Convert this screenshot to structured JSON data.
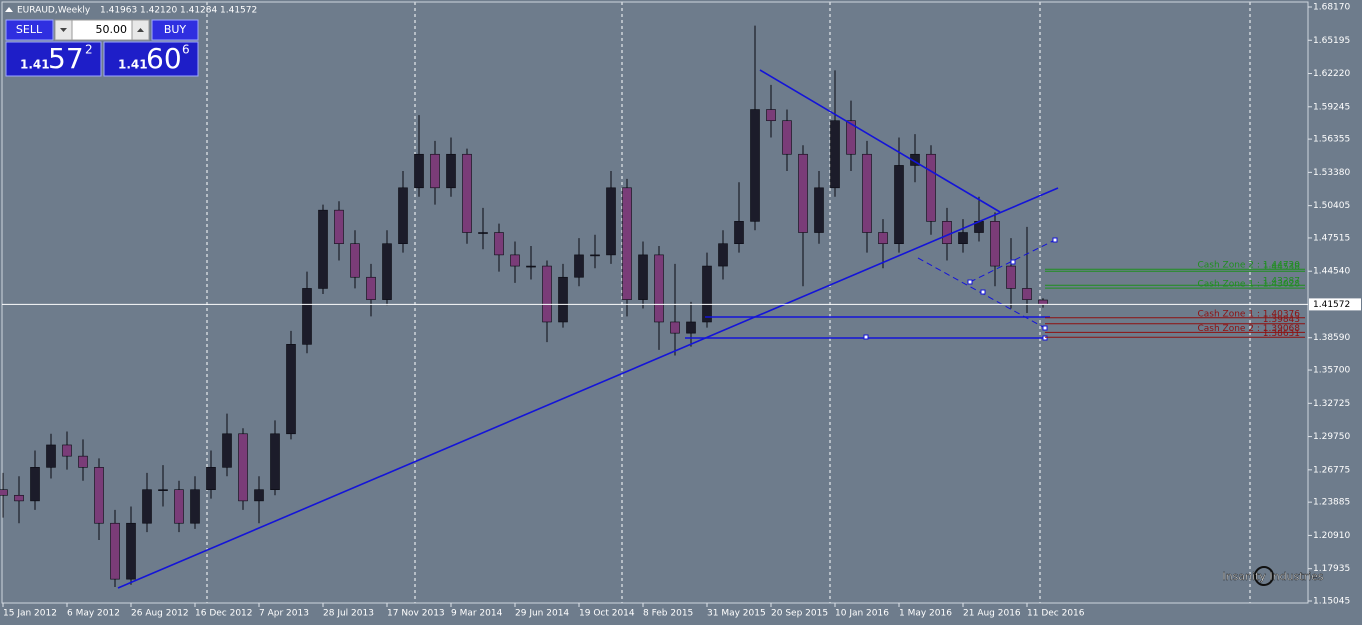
{
  "chart_data": {
    "type": "candlestick",
    "title": "EURAUD,Weekly",
    "quote": [
      1.41963,
      {
        "value": 1.4212,
        "label": "1.42120"
      },
      1.41284,
      1.41572
    ],
    "categories": [
      "15 Jan 2012",
      null,
      null,
      null,
      "6 May 2012",
      null,
      null,
      null,
      "26 Aug 2012",
      null,
      null,
      null,
      "16 Dec 2012",
      null,
      null,
      null,
      "7 Apr 2013",
      null,
      null,
      null,
      "28 Jul 2013",
      null,
      null,
      null,
      "17 Nov 2013",
      null,
      null,
      null,
      "9 Mar 2014",
      null,
      null,
      null,
      "29 Jun 2014",
      null,
      null,
      null,
      "19 Oct 2014",
      null,
      null,
      null,
      "8 Feb 2015",
      null,
      null,
      null,
      "31 May 2015",
      null,
      null,
      null,
      "20 Sep 2015",
      null,
      null,
      null,
      "10 Jan 2016",
      null,
      null,
      null,
      "1 May 2016",
      null,
      null,
      null,
      "21 Aug 2016",
      null,
      null,
      null,
      "11 Dec 2016",
      null
    ],
    "ohlc": [
      [
        1.25,
        1.265,
        1.225,
        1.245
      ],
      [
        1.245,
        1.262,
        1.22,
        1.24
      ],
      [
        1.24,
        1.285,
        1.232,
        1.27
      ],
      [
        1.27,
        1.3,
        1.26,
        1.29
      ],
      [
        1.29,
        1.302,
        1.268,
        1.28
      ],
      [
        1.28,
        1.295,
        1.258,
        1.27
      ],
      [
        1.27,
        1.278,
        1.205,
        1.22
      ],
      [
        1.22,
        1.232,
        1.163,
        1.17
      ],
      [
        1.17,
        1.235,
        1.165,
        1.22
      ],
      [
        1.22,
        1.265,
        1.212,
        1.25
      ],
      [
        1.25,
        1.272,
        1.235,
        1.25
      ],
      [
        1.25,
        1.258,
        1.212,
        1.22
      ],
      [
        1.22,
        1.262,
        1.215,
        1.25
      ],
      [
        1.25,
        1.285,
        1.242,
        1.27
      ],
      [
        1.27,
        1.318,
        1.262,
        1.3
      ],
      [
        1.3,
        1.305,
        1.232,
        1.24
      ],
      [
        1.24,
        1.262,
        1.22,
        1.25
      ],
      [
        1.25,
        1.312,
        1.245,
        1.3
      ],
      [
        1.3,
        1.392,
        1.295,
        1.38
      ],
      [
        1.38,
        1.445,
        1.372,
        1.43
      ],
      [
        1.43,
        1.505,
        1.425,
        1.5
      ],
      [
        1.5,
        1.508,
        1.455,
        1.47
      ],
      [
        1.47,
        1.482,
        1.43,
        1.44
      ],
      [
        1.44,
        1.452,
        1.405,
        1.42
      ],
      [
        1.42,
        1.482,
        1.415,
        1.47
      ],
      [
        1.47,
        1.535,
        1.462,
        1.52
      ],
      [
        1.52,
        1.585,
        1.512,
        1.55
      ],
      [
        1.55,
        1.562,
        1.505,
        1.52
      ],
      [
        1.52,
        1.565,
        1.512,
        1.55
      ],
      [
        1.55,
        1.555,
        1.47,
        1.48
      ],
      [
        1.48,
        1.502,
        1.465,
        1.48
      ],
      [
        1.48,
        1.488,
        1.445,
        1.46
      ],
      [
        1.46,
        1.472,
        1.435,
        1.45
      ],
      [
        1.45,
        1.468,
        1.438,
        1.45
      ],
      [
        1.45,
        1.455,
        1.382,
        1.4
      ],
      [
        1.4,
        1.452,
        1.395,
        1.44
      ],
      [
        1.44,
        1.475,
        1.432,
        1.46
      ],
      [
        1.46,
        1.478,
        1.448,
        1.46
      ],
      [
        1.46,
        1.535,
        1.452,
        1.52
      ],
      [
        1.52,
        1.528,
        1.405,
        1.42
      ],
      [
        1.42,
        1.472,
        1.412,
        1.46
      ],
      [
        1.46,
        1.468,
        1.375,
        1.4
      ],
      [
        1.4,
        1.452,
        1.37,
        1.39
      ],
      [
        1.39,
        1.418,
        1.378,
        1.4
      ],
      [
        1.4,
        1.462,
        1.395,
        1.45
      ],
      [
        1.45,
        1.482,
        1.438,
        1.47
      ],
      [
        1.47,
        1.525,
        1.462,
        1.49
      ],
      [
        1.49,
        1.665,
        1.482,
        1.59
      ],
      [
        1.59,
        1.612,
        1.565,
        1.58
      ],
      [
        1.58,
        1.59,
        1.535,
        1.55
      ],
      [
        1.55,
        1.558,
        1.432,
        1.48
      ],
      [
        1.48,
        1.535,
        1.47,
        1.52
      ],
      [
        1.52,
        1.625,
        1.512,
        1.58
      ],
      [
        1.58,
        1.598,
        1.535,
        1.55
      ],
      [
        1.55,
        1.562,
        1.462,
        1.48
      ],
      [
        1.48,
        1.492,
        1.448,
        1.47
      ],
      [
        1.47,
        1.565,
        1.462,
        1.54
      ],
      [
        1.54,
        1.568,
        1.525,
        1.55
      ],
      [
        1.55,
        1.558,
        1.478,
        1.49
      ],
      [
        1.49,
        1.502,
        1.455,
        1.47
      ],
      [
        1.47,
        1.492,
        1.462,
        1.48
      ],
      [
        1.48,
        1.512,
        1.472,
        1.49
      ],
      [
        1.49,
        1.498,
        1.432,
        1.45
      ],
      [
        1.45,
        1.475,
        1.412,
        1.43
      ],
      [
        1.43,
        1.485,
        1.408,
        1.42
      ],
      [
        1.41963,
        1.4212,
        1.41284,
        1.41572
      ]
    ],
    "up_color": "#1c1c2a",
    "down_color": "#7a3c78",
    "ylim": [
      1.15045,
      1.6817
    ],
    "yticks": [
      {
        "value": 1.6817,
        "label": "1.68170"
      },
      1.65195,
      {
        "value": 1.6222,
        "label": "1.62220"
      },
      1.59245,
      1.56355,
      {
        "value": 1.5338,
        "label": "1.53380"
      },
      1.50405,
      1.47515,
      {
        "value": 1.4454,
        "label": "1.44540"
      },
      {
        "value": 1.3859,
        "label": "1.38590"
      },
      {
        "value": 1.357,
        "label": "1.35700"
      },
      1.32725,
      {
        "value": 1.2975,
        "label": "1.29750"
      },
      1.26775,
      1.23885,
      {
        "value": 1.2091,
        "label": "1.20910"
      },
      1.17935,
      1.15045
    ],
    "current_price": 1.41572,
    "zones": [
      {
        "label": "Cash Zone 2 : 1.44720",
        "price": 1.4472,
        "color": "#1f8f1f"
      },
      {
        "label": "1.44538",
        "price": 1.44538,
        "color": "#1f8f1f"
      },
      {
        "label": "1.43287",
        "price": 1.43287,
        "color": "#1f8f1f"
      },
      {
        "label": "Cash Zone 1 : 1.43028",
        "price": 1.43028,
        "color": "#1f8f1f"
      },
      {
        "label": "Cash Zone 1 : 1.40376",
        "price": 1.40376,
        "color": "#8e1010"
      },
      {
        "label": "1.39843",
        "price": 1.39843,
        "color": "#8e1010"
      },
      {
        "label": "Cash Zone 2 : 1.39068",
        "price": 1.39068,
        "color": "#8e1010"
      },
      {
        "label": "1.38631",
        "price": 1.38631,
        "color": "#8e1010"
      }
    ],
    "trade_panel": {
      "sell": "SELL",
      "buy": "BUY",
      "lot": "50.00",
      "sell_price": {
        "prefix": "1.41",
        "big": "57",
        "small": "2"
      },
      "buy_price": {
        "prefix": "1.41",
        "big": "60",
        "small": "6"
      }
    },
    "watermark": "Insanity Industries"
  }
}
